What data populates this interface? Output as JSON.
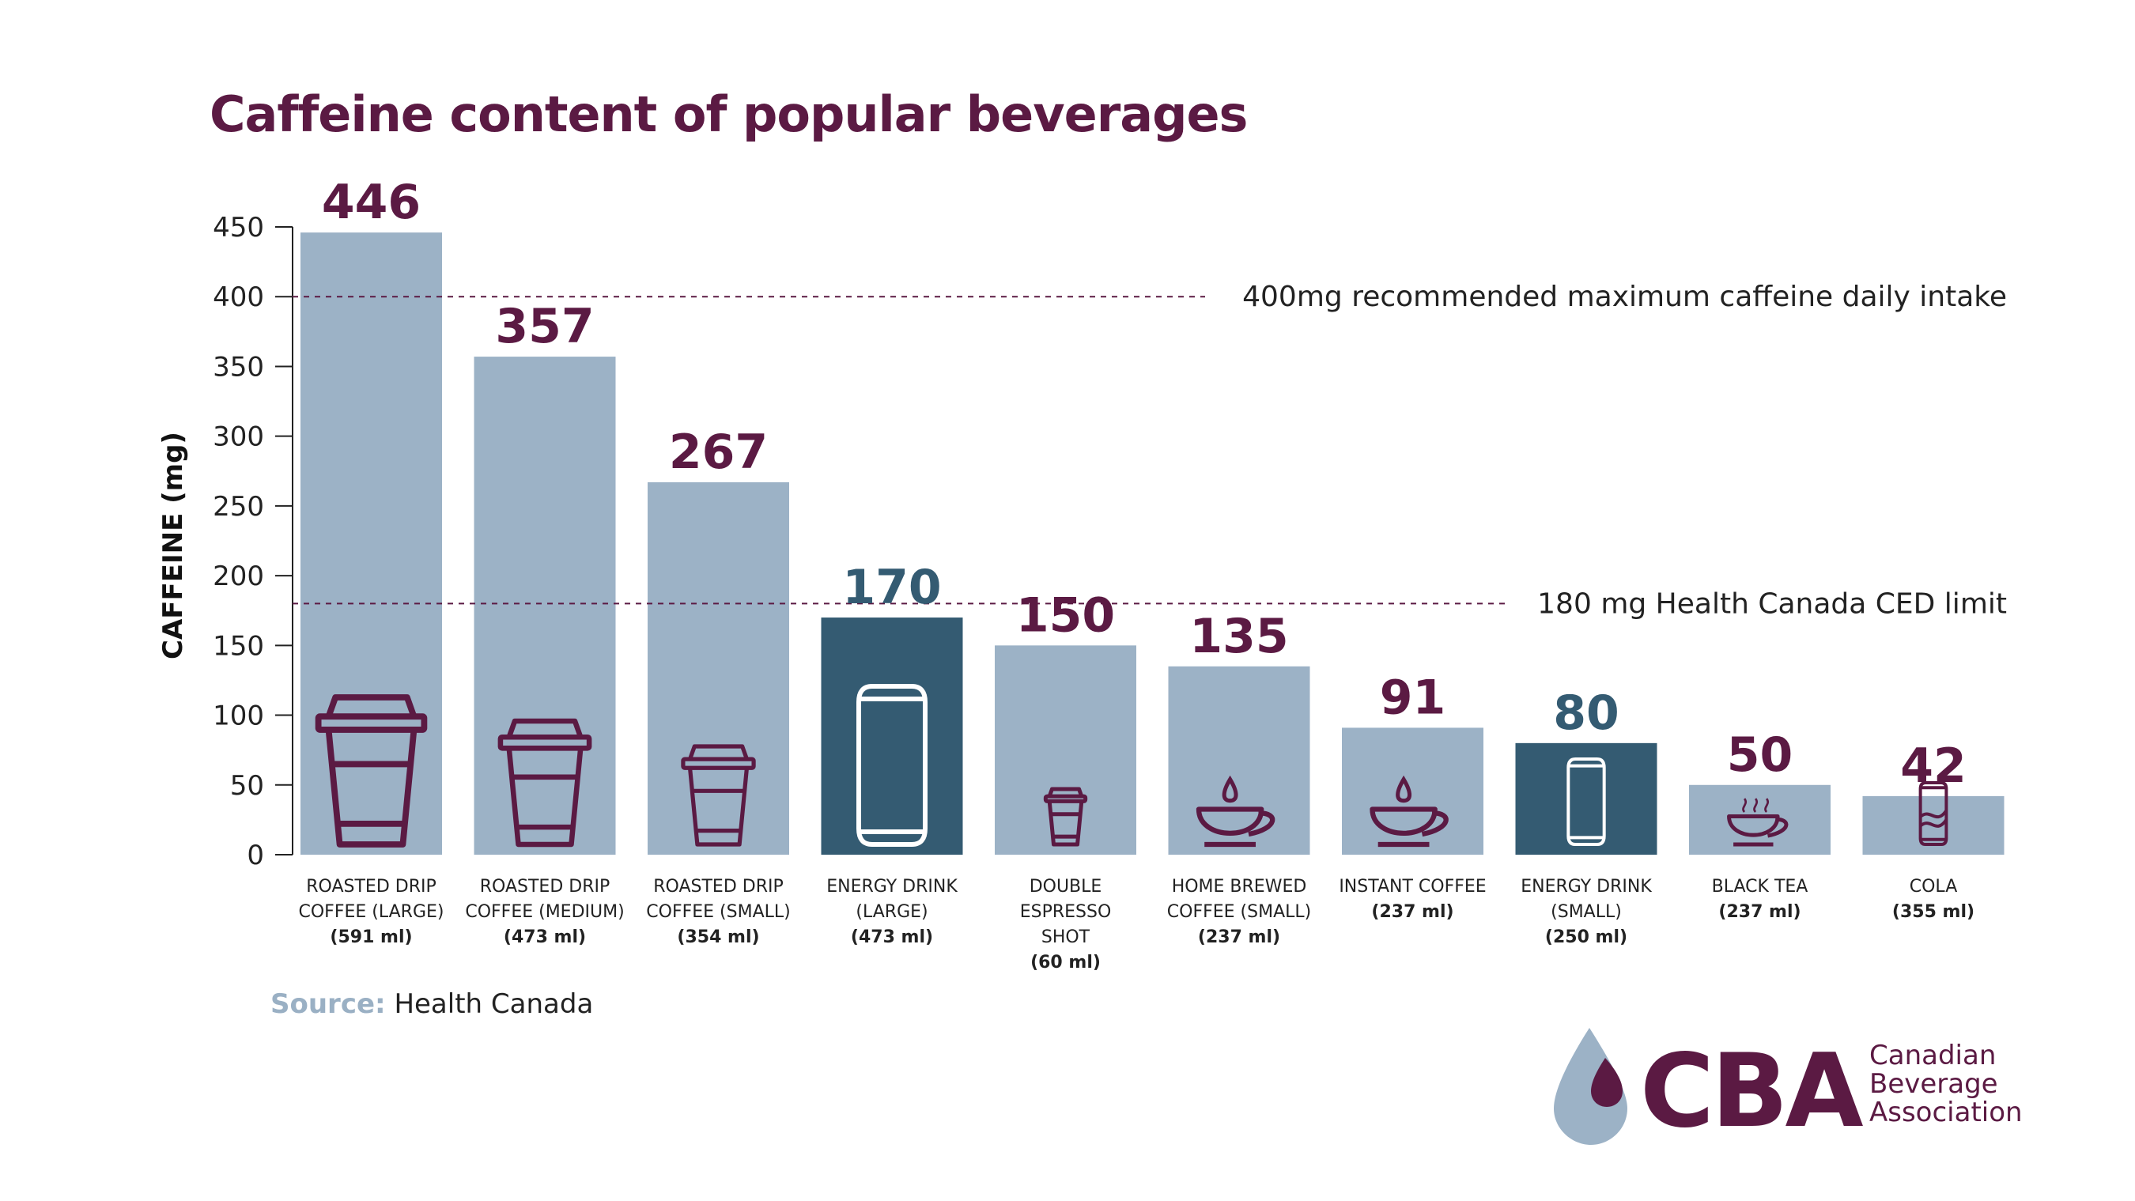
{
  "title": "Caffeine content of popular beverages",
  "colors": {
    "title": "#5b1a43",
    "bar_light": "#9cb2c6",
    "bar_dark": "#345b72",
    "value_purple": "#5b1a43",
    "value_teal": "#345b72",
    "icon": "#5b1a43",
    "icon_on_dark": "#ffffff",
    "refline": "#5b1a43",
    "axis": "#222222"
  },
  "chart_data": {
    "type": "bar",
    "ylabel": "CAFFEINE (mg)",
    "ylim": [
      0,
      450
    ],
    "yticks": [
      0,
      50,
      100,
      150,
      200,
      250,
      300,
      350,
      400,
      450
    ],
    "grid": false,
    "series": [
      {
        "values": [
          446,
          357,
          267,
          170,
          150,
          135,
          91,
          80,
          50,
          42
        ]
      }
    ],
    "categories": [
      {
        "line1": "ROASTED DRIP",
        "line2": "COFFEE (LARGE)",
        "volume": "(591 ml)",
        "value": 446,
        "style": "light",
        "icon": "cup-large-icon"
      },
      {
        "line1": "ROASTED DRIP",
        "line2": "COFFEE (MEDIUM)",
        "volume": "(473 ml)",
        "value": 357,
        "style": "light",
        "icon": "cup-medium-icon"
      },
      {
        "line1": "ROASTED DRIP",
        "line2": "COFFEE (SMALL)",
        "volume": "(354 ml)",
        "value": 267,
        "style": "light",
        "icon": "cup-small-icon"
      },
      {
        "line1": "ENERGY DRINK",
        "line2": "(LARGE)",
        "volume": "(473 ml)",
        "value": 170,
        "style": "dark",
        "icon": "can-large-icon"
      },
      {
        "line1": "DOUBLE",
        "line2": "ESPRESSO",
        "line3": "SHOT",
        "volume": "(60 ml)",
        "value": 150,
        "style": "light",
        "icon": "espresso-cup-icon"
      },
      {
        "line1": "HOME BREWED",
        "line2": "COFFEE (SMALL)",
        "volume": "(237 ml)",
        "value": 135,
        "style": "light",
        "icon": "coffee-mug-drop-icon"
      },
      {
        "line1": "INSTANT COFFEE",
        "volume": "(237 ml)",
        "value": 91,
        "style": "light",
        "icon": "coffee-mug-drop-icon"
      },
      {
        "line1": "ENERGY DRINK",
        "line2": "(SMALL)",
        "volume": "(250 ml)",
        "value": 80,
        "style": "dark",
        "icon": "can-small-icon"
      },
      {
        "line1": "BLACK TEA",
        "volume": "(237 ml)",
        "value": 50,
        "style": "light",
        "icon": "tea-cup-icon"
      },
      {
        "line1": "COLA",
        "volume": "(355 ml)",
        "value": 42,
        "style": "light",
        "icon": "soda-can-icon"
      }
    ],
    "reference_lines": [
      {
        "value": 400,
        "label": "400mg recommended maximum caffeine daily intake"
      },
      {
        "value": 180,
        "label": "180 mg Health Canada CED limit"
      }
    ]
  },
  "source": {
    "label": "Source:",
    "text": " Health Canada"
  },
  "logo": {
    "acronym": "CBA",
    "line1": "Canadian",
    "line2": "Beverage",
    "line3": "Association"
  }
}
